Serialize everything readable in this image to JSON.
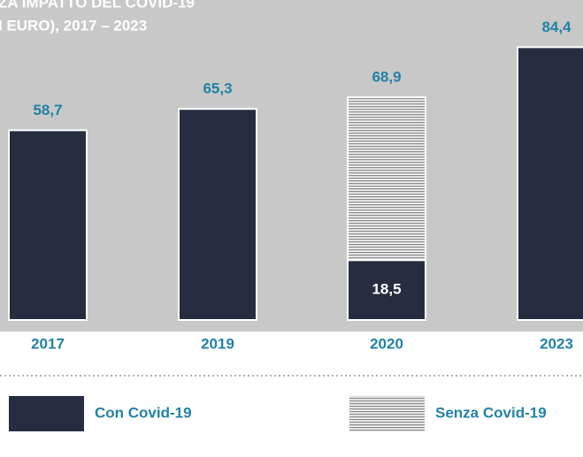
{
  "chart_data": {
    "type": "bar",
    "title": [
      "ZA IMPATTO DEL COVID-19",
      "I EURO), 2017 – 2023"
    ],
    "categories": [
      "2017",
      "2019",
      "2020",
      "2023"
    ],
    "series": [
      {
        "name": "Con Covid-19",
        "color": "#262d40",
        "values": [
          58.7,
          65.3,
          18.5,
          84.4
        ],
        "value_labels": [
          "58,7",
          "65,3",
          "18,5",
          "84,4"
        ]
      },
      {
        "name": "Senza Covid-19",
        "color": "#9a9a9a",
        "values": [
          null,
          null,
          68.9,
          null
        ],
        "value_labels": [
          null,
          null,
          "68,9",
          null
        ]
      }
    ],
    "ylim": [
      0,
      99
    ]
  }
}
